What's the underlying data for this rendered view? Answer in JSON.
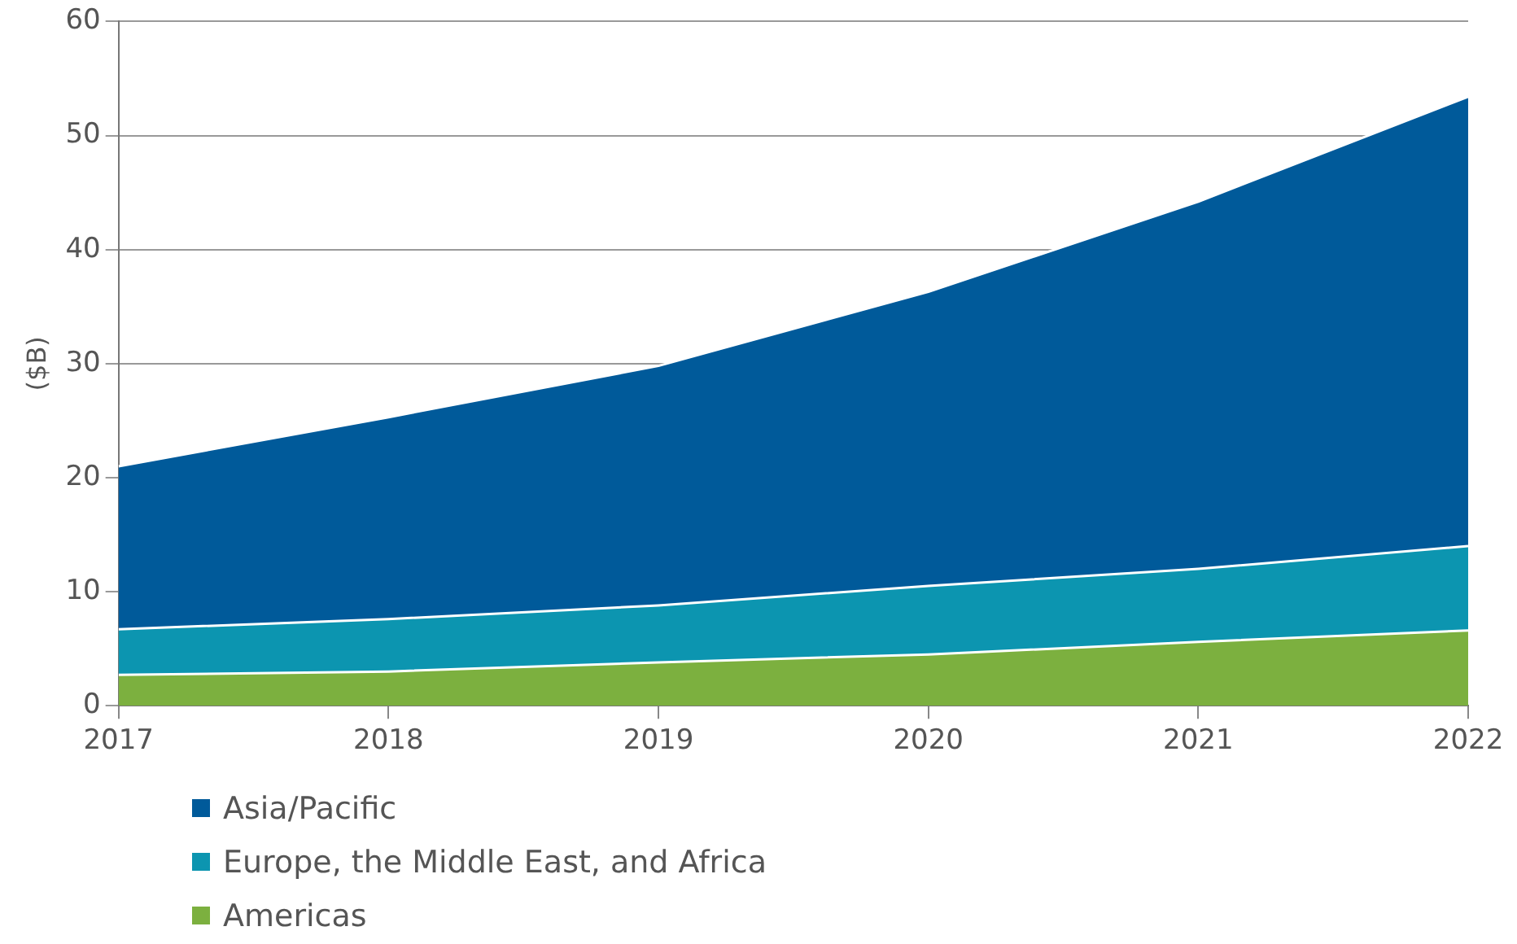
{
  "chart_data": {
    "type": "area",
    "stacked": true,
    "ylabel": "($B)",
    "x": [
      2017,
      2018,
      2019,
      2020,
      2021,
      2022
    ],
    "xlim": [
      2017,
      2022
    ],
    "xticks": [
      2017,
      2018,
      2019,
      2020,
      2021,
      2022
    ],
    "ylim": [
      0,
      60
    ],
    "yticks": [
      0,
      10,
      20,
      30,
      40,
      50,
      60
    ],
    "grid": "y",
    "legend": "bottom",
    "marker": "none",
    "series": [
      {
        "name": "Americas",
        "color": "#7cb03f",
        "values": [
          2.7,
          3.0,
          3.8,
          4.5,
          5.6,
          6.6
        ]
      },
      {
        "name": "Europe, the Middle East, and Africa",
        "color": "#0c95b0",
        "values": [
          4.0,
          4.6,
          5.0,
          6.0,
          6.4,
          7.4
        ]
      },
      {
        "name": "Asia/Pacific",
        "color": "#005a9a",
        "values": [
          14.3,
          17.7,
          21.0,
          25.8,
          32.2,
          39.4
        ]
      }
    ]
  }
}
